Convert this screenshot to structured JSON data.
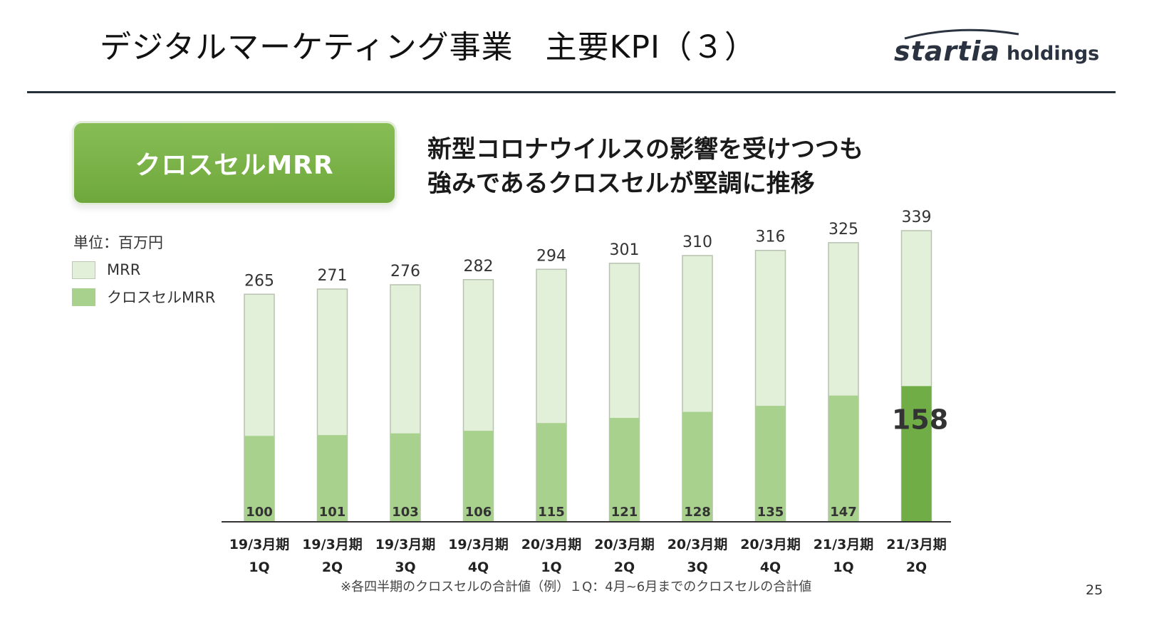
{
  "header": {
    "title": "デジタルマーケティング事業　主要KPI（３）",
    "logo_main": "startia",
    "logo_sub": "holdings"
  },
  "badge": {
    "label": "クロスセルMRR"
  },
  "headline": {
    "line1": "新型コロナウイルスの影響を受けつつも",
    "line2": "強みであるクロスセルが堅調に推移"
  },
  "unit_label": "単位：百万円",
  "legend": [
    {
      "label": "MRR",
      "color": "#e2efd9",
      "border": "#bcc7b4"
    },
    {
      "label": "クロスセルMRR",
      "color": "#a9d18e",
      "border": "#a9d18e"
    }
  ],
  "footnote": "※各四半期のクロスセルの合計値（例）１Q：4月~6月までのクロスセルの合計値",
  "page_number": "25",
  "colors": {
    "mrr": "#e2efd9",
    "mrr_border": "#b8c2b0",
    "cross_sell": "#a9d18e",
    "cross_sell_highlight": "#70ad47",
    "axis": "#333333"
  },
  "chart_data": {
    "type": "bar",
    "stacked": false,
    "overlapped": true,
    "categories": [
      [
        "19/3月期",
        "1Q"
      ],
      [
        "19/3月期",
        "2Q"
      ],
      [
        "19/3月期",
        "3Q"
      ],
      [
        "19/3月期",
        "4Q"
      ],
      [
        "20/3月期",
        "1Q"
      ],
      [
        "20/3月期",
        "2Q"
      ],
      [
        "20/3月期",
        "3Q"
      ],
      [
        "20/3月期",
        "4Q"
      ],
      [
        "21/3月期",
        "1Q"
      ],
      [
        "21/3月期",
        "2Q"
      ]
    ],
    "series": [
      {
        "name": "MRR",
        "values": [
          265,
          271,
          276,
          282,
          294,
          301,
          310,
          316,
          325,
          339
        ]
      },
      {
        "name": "クロスセルMRR",
        "values": [
          100,
          101,
          103,
          106,
          115,
          121,
          128,
          135,
          147,
          158
        ]
      }
    ],
    "highlight_index": 9,
    "ylim": [
      0,
      339
    ],
    "grid": false,
    "legend_position": "left"
  }
}
